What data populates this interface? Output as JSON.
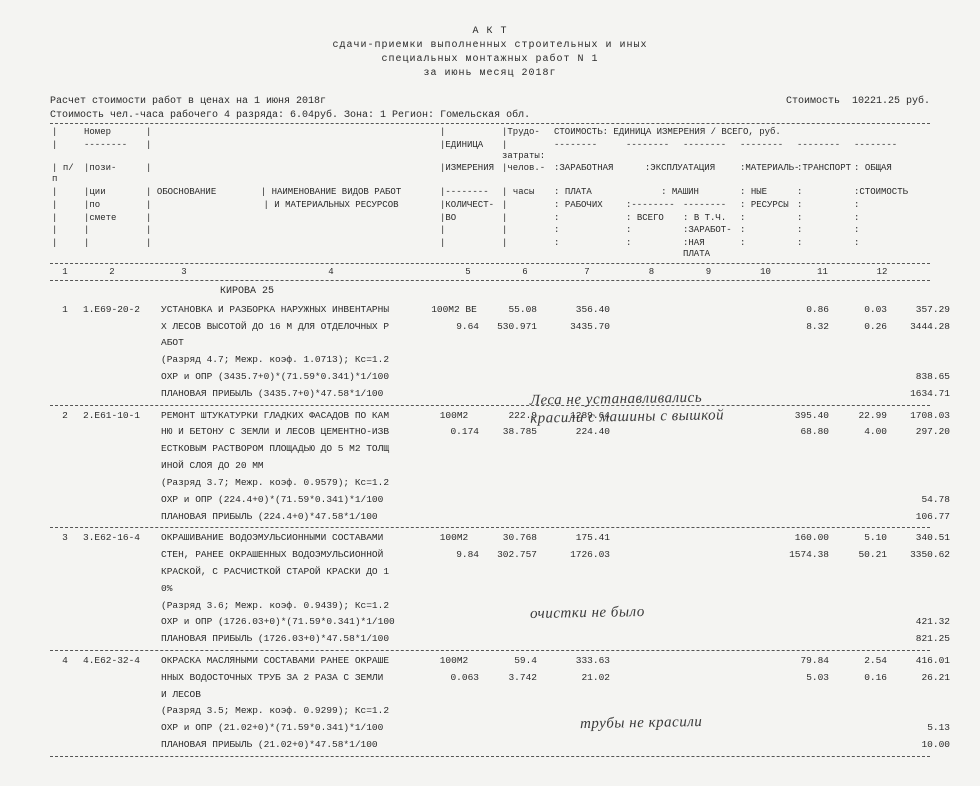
{
  "title": {
    "l1": "А К Т",
    "l2": "сдачи-приемки выполненных строительных и иных",
    "l3": "специальных монтажных работ N 1",
    "l4": "за июнь месяц 2018г"
  },
  "info": {
    "l1": "Расчет стоимости работ в ценах на 1 июня 2018г",
    "l2": "Стоимость чел.-часа рабочего 4 разряда:  6.04руб.  Зона:  1  Регион: Гомельская обл.",
    "cost_label": "Стоимость",
    "cost_value": "10221.25 руб."
  },
  "colheader": {
    "nomer": "Номер",
    "pp": "п/п",
    "pozi": "пози-",
    "cii": "ции",
    "po": "по",
    "smete": "смете",
    "obos": "ОБОСНОВАНИЕ",
    "naim1": "НАИМЕНОВАНИЕ ВИДОВ РАБОТ",
    "naim2": "И МАТЕРИАЛЬНЫХ РЕСУРСОВ",
    "ed": "ЕДИНИЦА",
    "izm": "ИЗМЕРЕНИЯ",
    "kol": "КОЛИЧЕСТ-",
    "vo": "ВО",
    "trudo": "Трудо-",
    "zatr": "затраты:",
    "chel": "челов.-",
    "chasy": "часы",
    "stoim": "СТОИМОСТЬ: ЕДИНИЦА ИЗМЕРЕНИЯ / ВСЕГО, руб.",
    "zar": "ЗАРАБОТНАЯ",
    "plata": "ПЛАТА",
    "rab": "РАБОЧИХ",
    "eks": "ЭКСПЛУАТАЦИЯ",
    "mash": "МАШИН",
    "vsego": "ВСЕГО",
    "vtch": "В Т.Ч.",
    "zarp": "ЗАРАБОТ-",
    "naya": "НАЯ ПЛАТА",
    "mat": "МАТЕРИАЛЬ-",
    "nye": "НЫЕ",
    "res": "РЕСУРСЫ",
    "tran": "ТРАНСПОРТ",
    "obsh": "ОБЩАЯ",
    "stoimc": "СТОИМОСТЬ"
  },
  "colnums": {
    "c1": "1",
    "c2": "2",
    "c3": "3",
    "c4": "4",
    "c5": "5",
    "c6": "6",
    "c7": "7",
    "c8": "8",
    "c9": "9",
    "c10": "10",
    "c11": "11",
    "c12": "12"
  },
  "section": "КИРОВА 25",
  "rows": [
    {
      "n": "1",
      "code": "1.Е69-20-2",
      "desc": "УСТАНОВКА И РАЗБОРКА НАРУЖНЫХ ИНВЕНТАРНЫ\nХ ЛЕСОВ ВЫСОТОЙ ДО 16 М ДЛЯ ОТДЕЛОЧНЫХ Р\nАБОТ",
      "unit": "100М2 ВЕ",
      "qty": "9.64",
      "h1": "55.08",
      "h2": "530.971",
      "z1": "356.40",
      "z2": "3435.70",
      "m1": "0.86",
      "m2": "8.32",
      "t1": "0.03",
      "t2": "0.26",
      "s1": "357.29",
      "s2": "3444.28",
      "sub1": "(Разряд 4.7; Межр. коэф. 1.0713); Кс=1.2",
      "sub2": "ОХР и ОПР       (3435.7+0)*(71.59*0.341)*1/100",
      "sub3": "ПЛАНОВАЯ ПРИБЫЛЬ (3435.7+0)*47.58*1/100",
      "r2": "838.65",
      "r3": "1634.71"
    },
    {
      "n": "2",
      "code": "2.Е61-10-1",
      "desc": "РЕМОНТ ШТУКАТУРКИ ГЛАДКИХ ФАСАДОВ ПО КАМ\nНЮ И БЕТОНУ С ЗЕМЛИ И ЛЕСОВ ЦЕМЕНТНО-ИЗВ\nЕСТКОВЫМ РАСТВОРОМ ПЛОЩАДЬЮ ДО 5 М2 ТОЛЩ\nИНОЙ СЛОЯ ДО 20 ММ",
      "unit": "100М2",
      "qty": "0.174",
      "h1": "222.9",
      "h2": "38.785",
      "z1": "1289.64",
      "z2": "224.40",
      "m1": "395.40",
      "m2": "68.80",
      "t1": "22.99",
      "t2": "4.00",
      "s1": "1708.03",
      "s2": "297.20",
      "sub1": "(Разряд 3.7; Межр. коэф. 0.9579); Кс=1.2",
      "sub2": "ОХР и ОПР       (224.4+0)*(71.59*0.341)*1/100",
      "sub3": "ПЛАНОВАЯ ПРИБЫЛЬ (224.4+0)*47.58*1/100",
      "r2": "54.78",
      "r3": "106.77"
    },
    {
      "n": "3",
      "code": "3.Е62-16-4",
      "desc": "ОКРАШИВАНИЕ ВОДОЭМУЛЬСИОННЫМИ СОСТАВАМИ\nСТЕН, РАНЕЕ ОКРАШЕННЫХ ВОДОЭМУЛЬСИОННОЙ\nКРАСКОЙ, С РАСЧИСТКОЙ СТАРОЙ КРАСКИ ДО 1\n0%",
      "unit": "100М2",
      "qty": "9.84",
      "h1": "30.768",
      "h2": "302.757",
      "z1": "175.41",
      "z2": "1726.03",
      "m1": "160.00",
      "m2": "1574.38",
      "t1": "5.10",
      "t2": "50.21",
      "s1": "340.51",
      "s2": "3350.62",
      "sub1": "(Разряд 3.6; Межр. коэф. 0.9439); Кс=1.2",
      "sub2": "ОХР и ОПР       (1726.03+0)*(71.59*0.341)*1/100",
      "sub3": "ПЛАНОВАЯ ПРИБЫЛЬ (1726.03+0)*47.58*1/100",
      "r2": "421.32",
      "r3": "821.25"
    },
    {
      "n": "4",
      "code": "4.Е62-32-4",
      "desc": "ОКРАСКА МАСЛЯНЫМИ СОСТАВАМИ РАНЕЕ ОКРАШЕ\nННЫХ ВОДОСТОЧНЫХ ТРУБ ЗА 2 РАЗА С ЗЕМЛИ\nИ ЛЕСОВ",
      "unit": "100М2",
      "qty": "0.063",
      "h1": "59.4",
      "h2": "3.742",
      "z1": "333.63",
      "z2": "21.02",
      "m1": "79.84",
      "m2": "5.03",
      "t1": "2.54",
      "t2": "0.16",
      "s1": "416.01",
      "s2": "26.21",
      "sub1": "(Разряд 3.5; Межр. коэф. 0.9299); Кс=1.2",
      "sub2": "ОХР и ОПР       (21.02+0)*(71.59*0.341)*1/100",
      "sub3": "ПЛАНОВАЯ ПРИБЫЛЬ (21.02+0)*47.58*1/100",
      "r2": "5.13",
      "r3": "10.00"
    }
  ],
  "notes": {
    "n1": "Леса не устанавливались\nкрасили с машины с вышкой",
    "n2": "очистки не было",
    "n3": "трубы не красили"
  }
}
